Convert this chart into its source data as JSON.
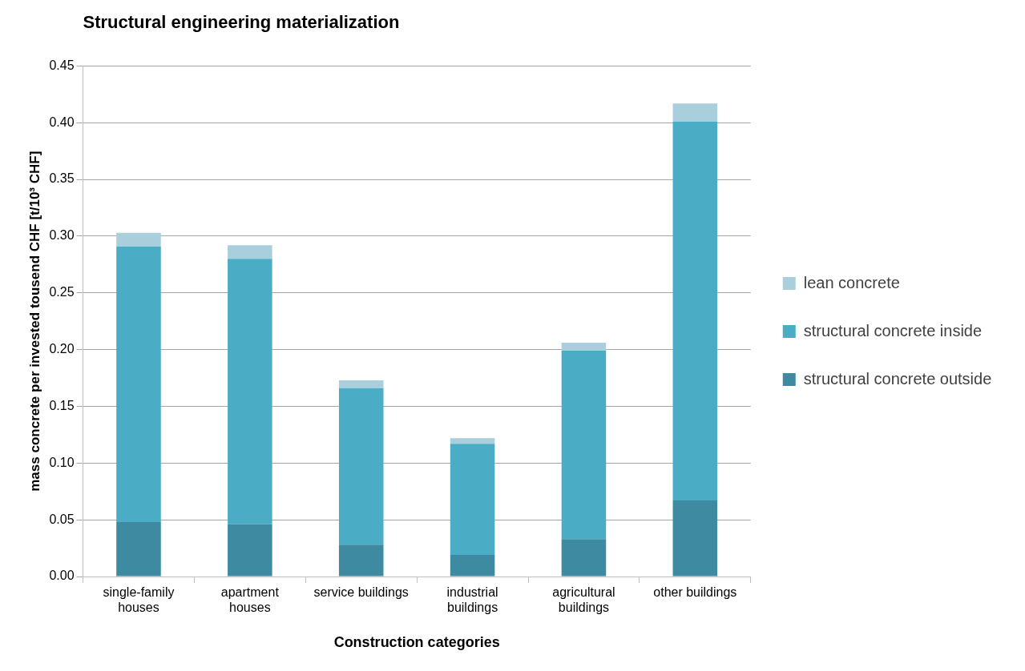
{
  "chart_data": {
    "type": "bar",
    "title": "Structural engineering materialization",
    "xlabel": "Construction categories",
    "ylabel": "mass concrete per invested tousend CHF [t/10³ CHF]",
    "categories": [
      "single-family houses",
      "apartment houses",
      "service buildings",
      "industrial buildings",
      "agricultural buildings",
      "other buildings"
    ],
    "series": [
      {
        "name": "structural concrete outside",
        "color": "#3d8aa1",
        "values": [
          0.048,
          0.046,
          0.028,
          0.019,
          0.033,
          0.067
        ]
      },
      {
        "name": "structural concrete inside",
        "color": "#4bacc6",
        "values": [
          0.243,
          0.234,
          0.138,
          0.098,
          0.166,
          0.334
        ]
      },
      {
        "name": "lean concrete",
        "color": "#a9cfdc",
        "values": [
          0.012,
          0.012,
          0.007,
          0.005,
          0.007,
          0.016
        ]
      }
    ],
    "stacked": true,
    "ylim": [
      0,
      0.45
    ],
    "yticks": [
      {
        "value": 0,
        "label": "0.00"
      },
      {
        "value": 0.05,
        "label": "0.05"
      },
      {
        "value": 0.1,
        "label": "0.10"
      },
      {
        "value": 0.15,
        "label": "0.15"
      },
      {
        "value": 0.2,
        "label": "0.20"
      },
      {
        "value": 0.25,
        "label": "0.25"
      },
      {
        "value": 0.3,
        "label": "0.30"
      },
      {
        "value": 0.35,
        "label": "0.35"
      },
      {
        "value": 0.4,
        "label": "0.40"
      },
      {
        "value": 0.45,
        "label": "0.45"
      }
    ],
    "grid": "y",
    "legend": "right"
  }
}
